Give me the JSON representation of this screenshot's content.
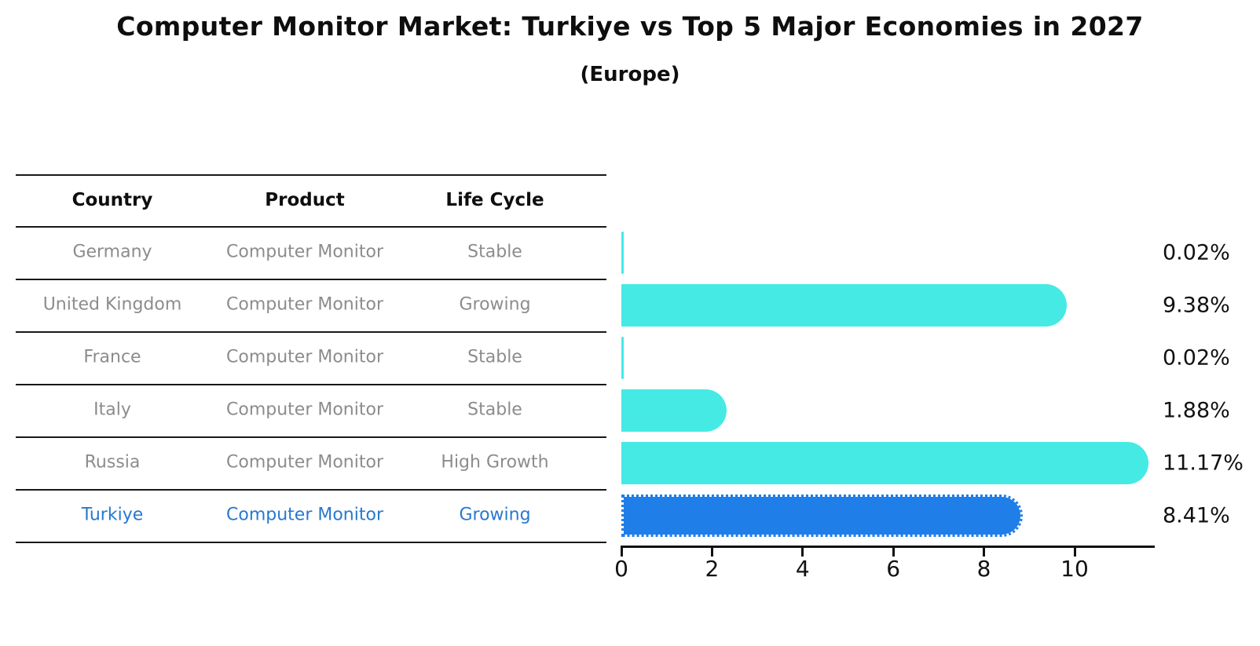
{
  "header": {
    "title": "Computer Monitor Market: Turkiye vs Top 5 Major Economies in 2027",
    "subtitle": "(Europe)"
  },
  "table": {
    "columns": [
      "Country",
      "Product",
      "Life Cycle"
    ],
    "rows": [
      {
        "country": "Germany",
        "product": "Computer Monitor",
        "life_cycle": "Stable",
        "highlight": false
      },
      {
        "country": "United Kingdom",
        "product": "Computer Monitor",
        "life_cycle": "Growing",
        "highlight": false
      },
      {
        "country": "France",
        "product": "Computer Monitor",
        "life_cycle": "Stable",
        "highlight": false
      },
      {
        "country": "Italy",
        "product": "Computer Monitor",
        "life_cycle": "Stable",
        "highlight": false
      },
      {
        "country": "Russia",
        "product": "Computer Monitor",
        "life_cycle": "High Growth",
        "highlight": false
      },
      {
        "country": "Turkiye",
        "product": "Computer Monitor",
        "life_cycle": "Growing",
        "highlight": true
      }
    ]
  },
  "chart_data": {
    "type": "bar",
    "orientation": "horizontal",
    "title": "Computer Monitor Market: Turkiye vs Top 5 Major Economies in 2027 (Europe)",
    "categories": [
      "Germany",
      "United Kingdom",
      "France",
      "Italy",
      "Russia",
      "Turkiye"
    ],
    "values": [
      0.02,
      9.38,
      0.02,
      1.88,
      11.17,
      8.41
    ],
    "value_labels": [
      "0.02%",
      "9.38%",
      "0.02%",
      "1.88%",
      "11.17%",
      "8.41%"
    ],
    "x_ticks": [
      "0",
      "2",
      "4",
      "6",
      "8",
      "10"
    ],
    "x_tick_values": [
      0,
      2,
      4,
      6,
      8,
      10
    ],
    "xlim": [
      0,
      11.77
    ],
    "highlight_index": 5,
    "grid": false,
    "legend": "none",
    "colors": {
      "bar": "#45eae5",
      "highlight_bar": "#1f7ee8",
      "highlight_text": "#2878d0",
      "row_text": "#8c8c8c",
      "header_text": "#0e0e0e"
    }
  }
}
